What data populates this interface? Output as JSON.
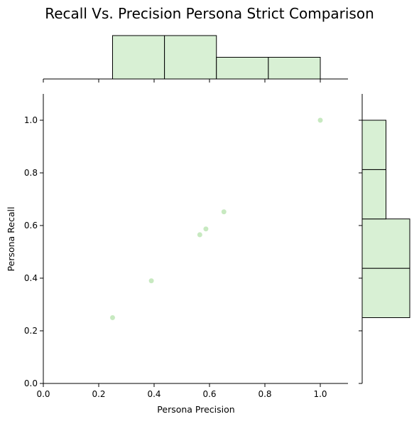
{
  "chart_data": {
    "type": "scatter",
    "title": "Recall Vs. Precision Persona Strict Comparison",
    "xlabel": "Persona Precision",
    "ylabel": "Persona Recall",
    "xlim": [
      0.0,
      1.1
    ],
    "ylim": [
      0.0,
      1.1
    ],
    "xticks": [
      "0.0",
      "0.2",
      "0.4",
      "0.6",
      "0.8",
      "1.0"
    ],
    "yticks": [
      "0.0",
      "0.2",
      "0.4",
      "0.6",
      "0.8",
      "1.0"
    ],
    "grid": false,
    "points": [
      {
        "x": 0.25,
        "y": 0.25
      },
      {
        "x": 0.39,
        "y": 0.39
      },
      {
        "x": 0.565,
        "y": 0.565
      },
      {
        "x": 0.587,
        "y": 0.587
      },
      {
        "x": 0.652,
        "y": 0.652
      },
      {
        "x": 1.0,
        "y": 1.0
      }
    ],
    "marginal_x_histogram": {
      "bin_edges": [
        0.25,
        0.4375,
        0.625,
        0.8125,
        1.0
      ],
      "counts": [
        2,
        2,
        1,
        1
      ]
    },
    "marginal_y_histogram": {
      "bin_edges": [
        0.25,
        0.4375,
        0.625,
        0.8125,
        1.0
      ],
      "counts": [
        2,
        2,
        1,
        1
      ]
    },
    "colors": {
      "point": "#c7e9c0",
      "bar_fill": "#d8f0d4",
      "bar_edge": "#000000"
    }
  }
}
